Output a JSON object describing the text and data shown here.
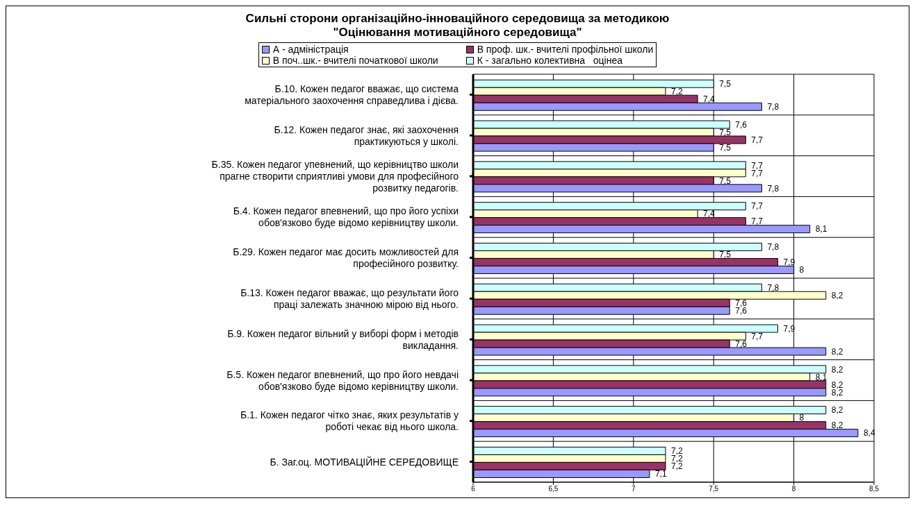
{
  "chart_data": {
    "type": "bar",
    "orientation": "horizontal",
    "title": "Сильні сторони організаційно-інноваційного середовища за методикою \"Оцінювання мотиваційного середовища\"",
    "categories": [
      "Б.10. Кожен педагог вважає, що система матеріального заохочення справедлива і дієва.",
      "Б.12. Кожен педагог знає, які заохочення практикуються у школі.",
      "Б.35. Кожен педагог упевнений, що керівництво школи прагне створити сприятливі умови для професійного розвитку педагогів.",
      "Б.4. Кожен педагог впевнений, що про його успіхи обов'язково буде відомо керівництву школи.",
      "Б.29. Кожен педагог має досить можливостей для професійного розвитку.",
      "Б.13. Кожен педагог вважає, що результати його праці залежать значною мірою від нього.",
      "Б.9. Кожен педагог вільний у виборі форм і методів викладання.",
      "Б.5. Кожен педагог впевнений, що про його невдачі обов'язково буде відомо керівництву школи.",
      "Б.1. Кожен педагог чітко знає, яких результатів у роботі чекає від нього школа.",
      "Б. Заг.оц. МОТИВАЦІЙНЕ СЕРЕДОВИЩЕ"
    ],
    "series": [
      {
        "name": "А - адміністрація",
        "color": "#9999ff",
        "values": [
          7.8,
          7.5,
          7.8,
          8.1,
          8,
          7.6,
          8.2,
          8.2,
          8.4,
          7.1
        ],
        "value_labels": [
          "7,8",
          "7,5",
          "7,8",
          "8,1",
          "8",
          "7,6",
          "8,2",
          "8,2",
          "8,4",
          "7,1"
        ]
      },
      {
        "name": "В проф. шк.- вчителі профільної школи",
        "color": "#993366",
        "values": [
          7.4,
          7.7,
          7.5,
          7.7,
          7.9,
          7.6,
          7.6,
          8.2,
          8.2,
          7.2
        ],
        "value_labels": [
          "7,4",
          "7,7",
          "7,5",
          "7,7",
          "7,9",
          "7,6",
          "7,6",
          "8,2",
          "8,2",
          "7,2"
        ]
      },
      {
        "name": "В поч..шк.- вчителі початкової школи",
        "color": "#ffffcc",
        "values": [
          7.2,
          7.5,
          7.7,
          7.4,
          7.5,
          8.2,
          7.7,
          8.1,
          8,
          7.2
        ],
        "value_labels": [
          "7,2",
          "7,5",
          "7,7",
          "7,4",
          "7,5",
          "8,2",
          "7,7",
          "8,1",
          "8",
          "7,2"
        ]
      },
      {
        "name": "К - загально колективна   оцінеа",
        "color": "#ccffff",
        "values": [
          7.5,
          7.6,
          7.7,
          7.7,
          7.8,
          7.8,
          7.9,
          8.2,
          8.2,
          7.2
        ],
        "value_labels": [
          "7,5",
          "7,6",
          "7,7",
          "7,7",
          "7,8",
          "7,8",
          "7,9",
          "8,2",
          "8,2",
          "7,2"
        ]
      }
    ],
    "xlim": [
      6,
      8.5
    ],
    "xticks": [
      6,
      {
        "value": 6.5,
        "label": "6,5"
      },
      7,
      {
        "value": 7.5,
        "label": "7,5"
      },
      8,
      {
        "value": 8.5,
        "label": "8,5"
      }
    ],
    "grid": true,
    "legend": "top"
  }
}
